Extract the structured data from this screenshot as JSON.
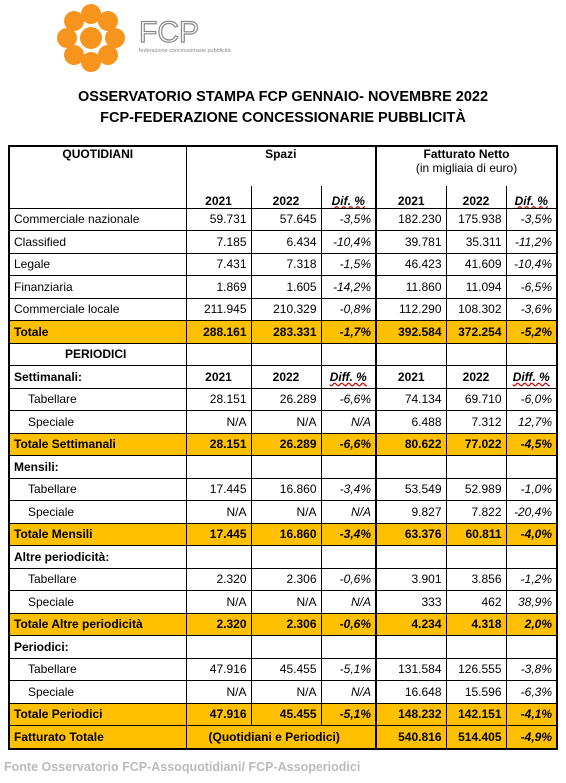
{
  "logo": {
    "name": "FCP",
    "tagline": "federazione concessionarie pubblicità",
    "color": "#f7941d"
  },
  "title": [
    "OSSERVATORIO STAMPA FCP GENNAIO- NOVEMBRE 2022",
    "FCP-FEDERAZIONE CONCESSIONARIE PUBBLICITÀ"
  ],
  "table": {
    "header": {
      "section": "QUOTIDIANI",
      "group1": "Spazi",
      "group2": "Fatturato Netto",
      "group2_note": "(in migliaia di euro)",
      "columns": [
        "2021",
        "2022",
        "Dif. %",
        "2021",
        "2022",
        "Dif. %"
      ]
    },
    "total_fill": "#ffc000",
    "rows": [
      {
        "label": "Commerciale nazionale",
        "cells": [
          "59.731",
          "57.645",
          "-3,5%",
          "182.230",
          "175.938",
          "-3,5%"
        ]
      },
      {
        "label": "Classified",
        "cells": [
          "7.185",
          "6.434",
          "-10,4%",
          "39.781",
          "35.311",
          "-11,2%"
        ]
      },
      {
        "label": "Legale",
        "cells": [
          "7.431",
          "7.318",
          "-1,5%",
          "46.423",
          "41.609",
          "-10,4%"
        ]
      },
      {
        "label": "Finanziaria",
        "cells": [
          "1.869",
          "1.605",
          "-14,2%",
          "11.860",
          "11.094",
          "-6,5%"
        ]
      },
      {
        "label": "Commerciale locale",
        "cells": [
          "211.945",
          "210.329",
          "-0,8%",
          "112.290",
          "108.302",
          "-3,6%"
        ]
      },
      {
        "label": "Totale",
        "style": "total",
        "cells": [
          "288.161",
          "283.331",
          "-1,7%",
          "392.584",
          "372.254",
          "-5,2%"
        ]
      },
      {
        "label": "PERIODICI",
        "style": "title",
        "cells": []
      },
      {
        "label": "Settimanali:",
        "style": "head",
        "cells": [
          "2021",
          "2022",
          "Diff. %",
          "2021",
          "2022",
          "Diff. %"
        ]
      },
      {
        "label": "Tabellare",
        "style": "sub",
        "cells": [
          "28.151",
          "26.289",
          "-6,6%",
          "74.134",
          "69.710",
          "-6,0%"
        ]
      },
      {
        "label": "Speciale",
        "style": "sub",
        "cells": [
          "N/A",
          "N/A",
          "N/A",
          "6.488",
          "7.312",
          "12,7%"
        ]
      },
      {
        "label": "Totale Settimanali",
        "style": "total",
        "cells": [
          "28.151",
          "26.289",
          "-6,6%",
          "80.622",
          "77.022",
          "-4,5%"
        ]
      },
      {
        "label": "Mensili:",
        "style": "group",
        "cells": []
      },
      {
        "label": "Tabellare",
        "style": "sub",
        "cells": [
          "17.445",
          "16.860",
          "-3,4%",
          "53.549",
          "52.989",
          "-1,0%"
        ]
      },
      {
        "label": "Speciale",
        "style": "sub",
        "cells": [
          "N/A",
          "N/A",
          "N/A",
          "9.827",
          "7.822",
          "-20,4%"
        ]
      },
      {
        "label": "Totale Mensili",
        "style": "total",
        "cells": [
          "17.445",
          "16.860",
          "-3,4%",
          "63.376",
          "60.811",
          "-4,0%"
        ]
      },
      {
        "label": "Altre periodicità:",
        "style": "group",
        "cells": []
      },
      {
        "label": "Tabellare",
        "style": "sub",
        "cells": [
          "2.320",
          "2.306",
          "-0,6%",
          "3.901",
          "3.856",
          "-1,2%"
        ]
      },
      {
        "label": "Speciale",
        "style": "sub",
        "cells": [
          "N/A",
          "N/A",
          "N/A",
          "333",
          "462",
          "38,9%"
        ]
      },
      {
        "label": "Totale Altre periodicità",
        "style": "total",
        "cells": [
          "2.320",
          "2.306",
          "-0,6%",
          "4.234",
          "4.318",
          "2,0%"
        ]
      },
      {
        "label": "Periodici:",
        "style": "group",
        "cells": []
      },
      {
        "label": "Tabellare",
        "style": "sub",
        "cells": [
          "47.916",
          "45.455",
          "-5,1%",
          "131.584",
          "126.555",
          "-3,8%"
        ]
      },
      {
        "label": "Speciale",
        "style": "sub",
        "cells": [
          "N/A",
          "N/A",
          "N/A",
          "16.648",
          "15.596",
          "-6,3%"
        ]
      },
      {
        "label": "Totale Periodici",
        "style": "total",
        "cells": [
          "47.916",
          "45.455",
          "-5,1%",
          "148.232",
          "142.151",
          "-4,1%"
        ]
      },
      {
        "label": "Fatturato Totale",
        "style": "total",
        "note": "(Quotidiani e Periodici)",
        "cells": [
          "540.816",
          "514.405",
          "-4,9%"
        ]
      }
    ]
  },
  "footer": "Fonte Osservatorio FCP-Assoquotidiani/ FCP-Assoperiodici"
}
